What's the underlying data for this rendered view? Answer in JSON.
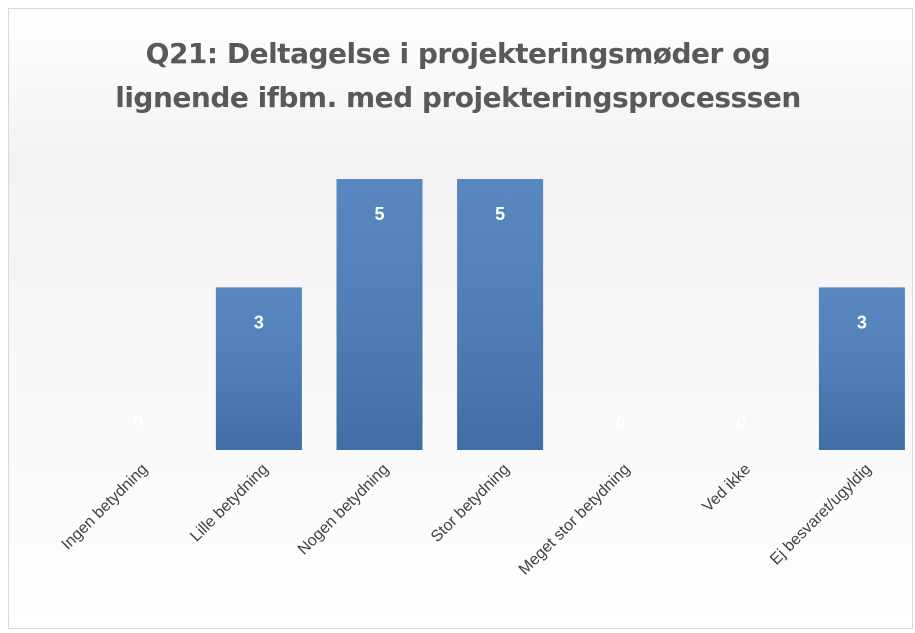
{
  "chart_data": {
    "type": "bar",
    "title": "Q21: Deltagelse i projekteringsmøder og lignende ifbm. med projekteringsprocesssen",
    "categories": [
      "Ingen betydning",
      "Lille betydning",
      "Nogen betydning",
      "Stor betydning",
      "Meget stor betydning",
      "Ved ikke",
      "Ej besvaret/ugyldig"
    ],
    "values": [
      0,
      3,
      5,
      5,
      0,
      0,
      3
    ],
    "color": "#4a7dbb"
  }
}
